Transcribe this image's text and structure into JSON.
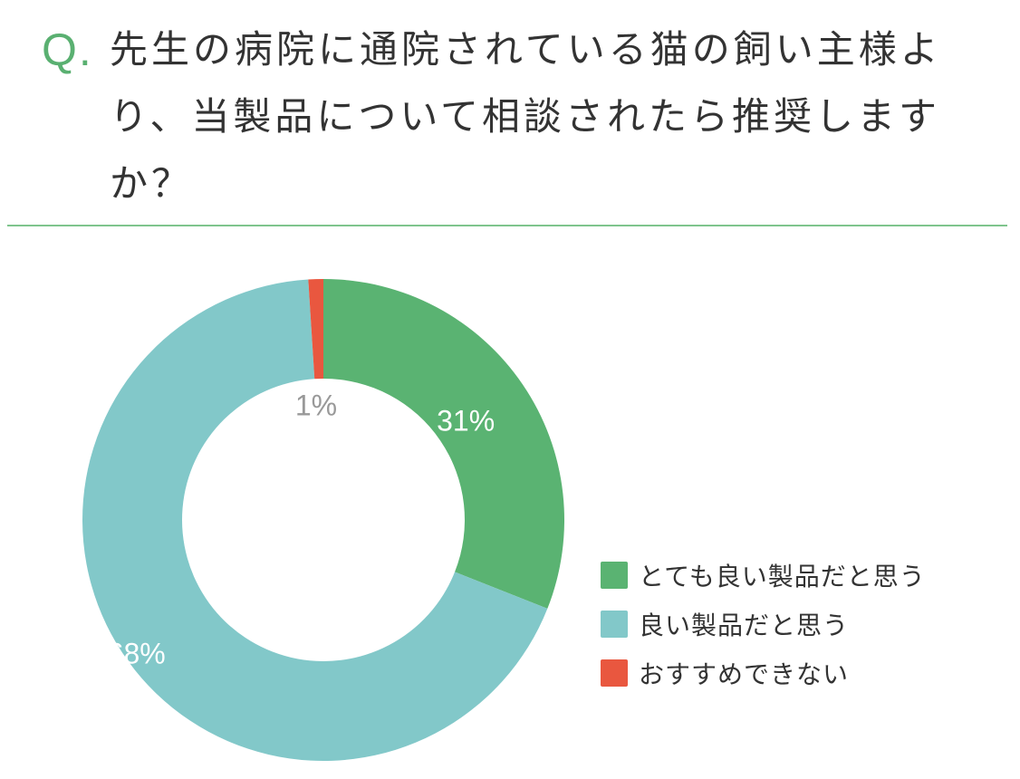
{
  "question": {
    "prefix": "Q.",
    "text": "先生の病院に通院されている猫の飼い主様より、当製品について相談されたら推奨しますか？"
  },
  "colors": {
    "accent": "#5ab071",
    "divider": "#7fc48d",
    "very_good": "#5ab372",
    "good": "#82c8c9",
    "not_recommend": "#e9573f",
    "label_light": "#ffffff",
    "label_gray": "#999999"
  },
  "chart_data": {
    "type": "pie",
    "donut": true,
    "categories": [
      "とても良い製品だと思う",
      "良い製品だと思う",
      "おすすめできない"
    ],
    "values": [
      31,
      68,
      1
    ],
    "data_labels": [
      "31%",
      "68%",
      "1%"
    ],
    "colors": [
      "#5ab372",
      "#82c8c9",
      "#e9573f"
    ],
    "start": "top",
    "direction": "clockwise",
    "legend_placement": "bottom-right",
    "title": ""
  },
  "legend": {
    "items": [
      {
        "label": "とても良い製品だと思う",
        "color": "#5ab372"
      },
      {
        "label": "良い製品だと思う",
        "color": "#82c8c9"
      },
      {
        "label": "おすすめできない",
        "color": "#e9573f"
      }
    ]
  }
}
